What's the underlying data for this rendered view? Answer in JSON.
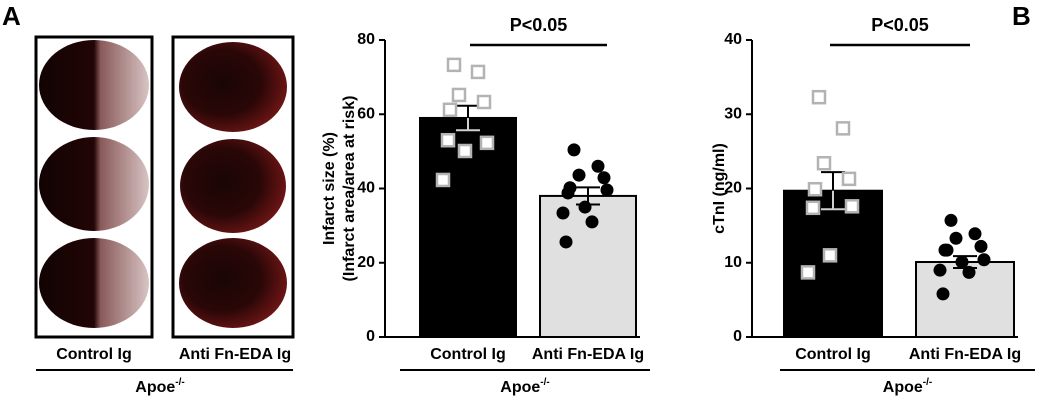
{
  "panel_a": {
    "label": "A",
    "images": [
      "Control Ig",
      "Anti Fn-EDA Ig"
    ],
    "group": {
      "name": "Apoe",
      "sup": "-/-"
    }
  },
  "panel_b": {
    "label": "B"
  },
  "chart_data": [
    {
      "type": "bar",
      "ylabel": [
        "Infarct size (%)",
        "(Infarct area/area at risk)"
      ],
      "categories": [
        "Control Ig",
        "Anti Fn-EDA Ig"
      ],
      "values": [
        59,
        38
      ],
      "errors": [
        3.3,
        2.3
      ],
      "points": [
        [
          73.3,
          71.4,
          65.2,
          63.3,
          61.2,
          53,
          52.3,
          50.1,
          42.3
        ],
        [
          50.4,
          46,
          43.6,
          42.9,
          40.2,
          38.8,
          39.6,
          35,
          33.4,
          31,
          25.6
        ]
      ],
      "colors": [
        "#000000",
        "#e0e0e0"
      ],
      "markers": [
        "square-open",
        "circle"
      ],
      "marker_colors": [
        "#b3b3b3",
        "#000000"
      ],
      "ylim": [
        0,
        80
      ],
      "yticks": [
        0,
        20,
        40,
        60,
        80
      ],
      "annotation": "P<0.05",
      "group": {
        "name": "Apoe",
        "sup": "-/-"
      }
    },
    {
      "type": "bar",
      "ylabel": [
        "cTnI (ng/ml)"
      ],
      "categories": [
        "Control Ig",
        "Anti Fn-EDA Ig"
      ],
      "values": [
        19.7,
        10.1
      ],
      "errors": [
        2.5,
        0.8
      ],
      "points": [
        [
          32.3,
          28.1,
          23.4,
          21.3,
          19.9,
          17.4,
          17.6,
          11,
          8.7
        ],
        [
          15.7,
          13.9,
          13.3,
          12.2,
          11.7,
          11.7,
          10.4,
          10.1,
          9,
          8.7,
          5.8
        ]
      ],
      "colors": [
        "#000000",
        "#e0e0e0"
      ],
      "markers": [
        "square-open",
        "circle"
      ],
      "marker_colors": [
        "#b3b3b3",
        "#000000"
      ],
      "ylim": [
        0,
        40
      ],
      "yticks": [
        0,
        10,
        20,
        30,
        40
      ],
      "annotation": "P<0.05",
      "group": {
        "name": "Apoe",
        "sup": "-/-"
      }
    }
  ]
}
